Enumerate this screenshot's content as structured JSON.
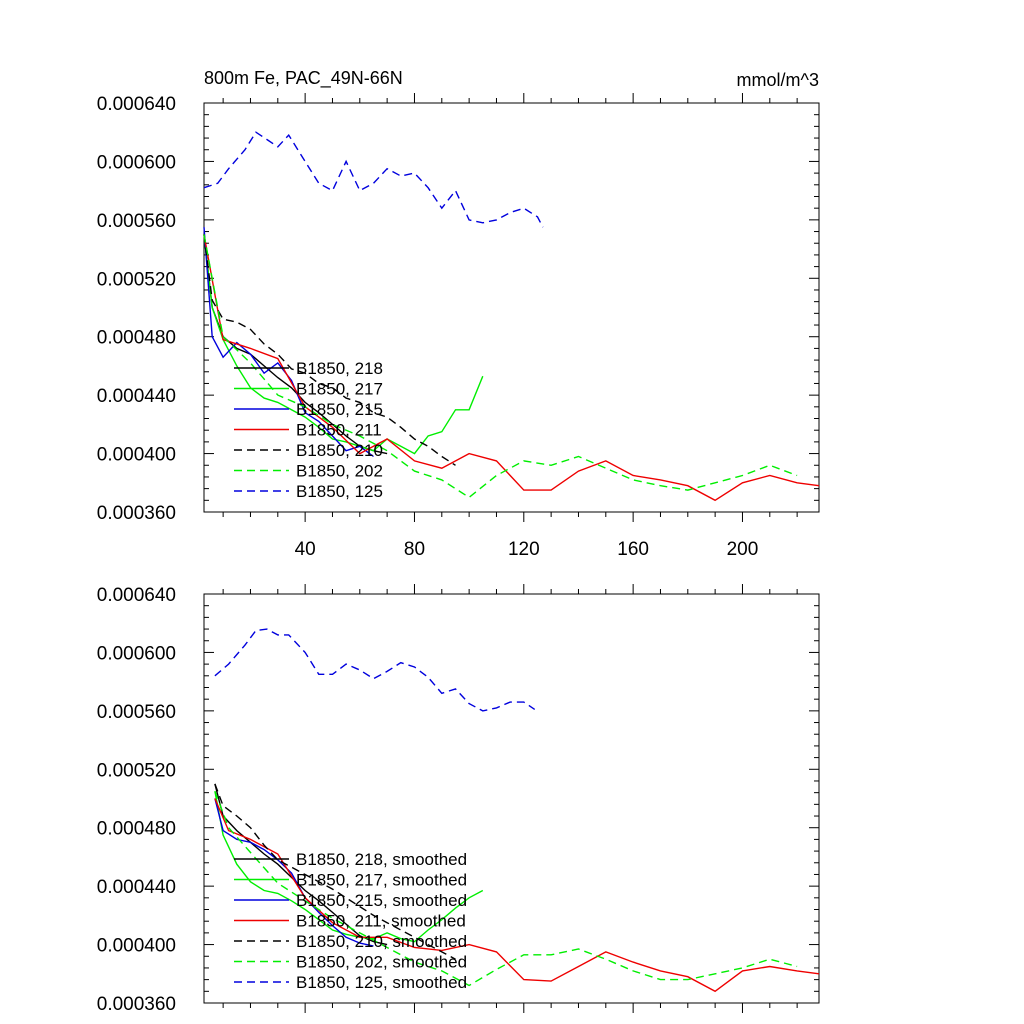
{
  "colors": {
    "black": "#000000",
    "green": "#00ee00",
    "blue": "#0000dd",
    "red": "#ee0000"
  },
  "chart_data": [
    {
      "type": "line",
      "title": "800m Fe, PAC_49N-66N",
      "units": "mmol/m^3",
      "xlim": [
        3,
        228
      ],
      "ylim": [
        0.00036,
        0.00064
      ],
      "xticks": [
        40,
        80,
        120,
        160,
        200
      ],
      "xtick_labels": [
        "40",
        "80",
        "120",
        "160",
        "200"
      ],
      "yticks": [
        0.00036,
        0.0004,
        0.00044,
        0.00048,
        0.00052,
        0.00056,
        0.0006,
        0.00064
      ],
      "ytick_labels": [
        "0.000360",
        "0.000400",
        "0.000440",
        "0.000480",
        "0.000520",
        "0.000560",
        "0.000600",
        "0.000640"
      ],
      "series": [
        {
          "name": "B1850, 218",
          "color": "#000000",
          "dash": "solid",
          "x": [
            3,
            6,
            10,
            15,
            20,
            25,
            30,
            35,
            40,
            45,
            50,
            55,
            60,
            65,
            70
          ],
          "y": [
            0.00055,
            0.0005,
            0.00048,
            0.000472,
            0.000468,
            0.00046,
            0.000452,
            0.000445,
            0.000435,
            0.000428,
            0.00042,
            0.000412,
            0.000405,
            0.000402,
            0.0004
          ]
        },
        {
          "name": "B1850, 217",
          "color": "#00ee00",
          "dash": "solid",
          "x": [
            3,
            6,
            10,
            15,
            20,
            25,
            30,
            35,
            40,
            45,
            50,
            55,
            60,
            65,
            70,
            75,
            80,
            85,
            90,
            95,
            100,
            105
          ],
          "y": [
            0.00055,
            0.0005,
            0.000478,
            0.00046,
            0.000445,
            0.000438,
            0.000435,
            0.00043,
            0.000425,
            0.000418,
            0.00041,
            0.000408,
            0.000405,
            0.000402,
            0.00041,
            0.000405,
            0.0004,
            0.000412,
            0.000415,
            0.00043,
            0.00043,
            0.000453
          ]
        },
        {
          "name": "B1850, 215",
          "color": "#0000dd",
          "dash": "solid",
          "x": [
            3,
            6,
            10,
            15,
            20,
            25,
            30,
            35,
            40,
            45,
            50,
            55,
            60,
            65
          ],
          "y": [
            0.000555,
            0.00048,
            0.000466,
            0.000476,
            0.000468,
            0.000455,
            0.000462,
            0.00045,
            0.000428,
            0.000422,
            0.000412,
            0.000402,
            0.000405,
            0.000398
          ]
        },
        {
          "name": "B1850, 211",
          "color": "#ee0000",
          "dash": "solid",
          "x": [
            3,
            10,
            20,
            30,
            40,
            50,
            60,
            70,
            80,
            90,
            100,
            110,
            120,
            130,
            140,
            150,
            160,
            170,
            180,
            190,
            200,
            210,
            220,
            228
          ],
          "y": [
            0.00055,
            0.000478,
            0.000472,
            0.000465,
            0.000432,
            0.000418,
            0.0004,
            0.00041,
            0.000395,
            0.00039,
            0.0004,
            0.000395,
            0.000375,
            0.000375,
            0.000388,
            0.000395,
            0.000385,
            0.000382,
            0.000378,
            0.000368,
            0.00038,
            0.000385,
            0.00038,
            0.000378
          ]
        },
        {
          "name": "B1850, 210",
          "color": "#000000",
          "dash": "dashed",
          "x": [
            3,
            6,
            10,
            15,
            20,
            25,
            30,
            35,
            40,
            45,
            50,
            55,
            60,
            65,
            70,
            75,
            80,
            85,
            90,
            95
          ],
          "y": [
            0.00055,
            0.000505,
            0.000492,
            0.00049,
            0.000485,
            0.000475,
            0.000468,
            0.000458,
            0.000455,
            0.000448,
            0.000445,
            0.000438,
            0.000435,
            0.000428,
            0.000425,
            0.000418,
            0.00041,
            0.000405,
            0.000398,
            0.000392
          ]
        },
        {
          "name": "B1850, 202",
          "color": "#00ee00",
          "dash": "dashed",
          "x": [
            3,
            10,
            20,
            30,
            40,
            50,
            60,
            70,
            80,
            90,
            100,
            110,
            120,
            130,
            140,
            150,
            160,
            170,
            180,
            190,
            200,
            210,
            220
          ],
          "y": [
            0.00055,
            0.00048,
            0.000462,
            0.00044,
            0.000432,
            0.00042,
            0.000412,
            0.000402,
            0.000388,
            0.000382,
            0.00037,
            0.000385,
            0.000395,
            0.000392,
            0.000398,
            0.00039,
            0.000382,
            0.000378,
            0.000375,
            0.00038,
            0.000385,
            0.000392,
            0.000385
          ]
        },
        {
          "name": "B1850, 125",
          "color": "#0000dd",
          "dash": "dashed",
          "x": [
            3,
            8,
            12,
            18,
            22,
            26,
            30,
            34,
            40,
            45,
            50,
            55,
            60,
            65,
            70,
            75,
            80,
            85,
            90,
            95,
            100,
            105,
            110,
            115,
            120,
            125,
            127
          ],
          "y": [
            0.000582,
            0.000585,
            0.000595,
            0.000608,
            0.00062,
            0.000615,
            0.00061,
            0.000618,
            0.0006,
            0.000585,
            0.00058,
            0.0006,
            0.00058,
            0.000585,
            0.000595,
            0.00059,
            0.000592,
            0.000582,
            0.000568,
            0.00058,
            0.00056,
            0.000558,
            0.00056,
            0.000565,
            0.000568,
            0.000562,
            0.000555
          ]
        }
      ]
    },
    {
      "type": "line",
      "xlim": [
        3,
        228
      ],
      "ylim": [
        0.00036,
        0.00064
      ],
      "xticks": [
        40,
        80,
        120,
        160,
        200
      ],
      "yticks": [
        0.00036,
        0.0004,
        0.00044,
        0.00048,
        0.00052,
        0.00056,
        0.0006,
        0.00064
      ],
      "ytick_labels": [
        "0.000360",
        "0.000400",
        "0.000440",
        "0.000480",
        "0.000520",
        "0.000560",
        "0.000600",
        "0.000640"
      ],
      "series": [
        {
          "name": "B1850, 218, smoothed",
          "color": "#000000",
          "dash": "solid",
          "x": [
            7,
            10,
            15,
            20,
            25,
            30,
            35,
            40,
            45,
            50,
            55,
            60,
            65,
            70
          ],
          "y": [
            0.00051,
            0.000488,
            0.000478,
            0.00047,
            0.000462,
            0.000455,
            0.000446,
            0.000437,
            0.00043,
            0.000422,
            0.000414,
            0.000406,
            0.000402,
            0.0004
          ]
        },
        {
          "name": "B1850, 217, smoothed",
          "color": "#00ee00",
          "dash": "solid",
          "x": [
            7,
            10,
            15,
            20,
            25,
            30,
            35,
            40,
            45,
            50,
            55,
            60,
            65,
            70,
            75,
            80,
            85,
            90,
            95,
            100,
            105
          ],
          "y": [
            0.000505,
            0.000475,
            0.000455,
            0.000443,
            0.000437,
            0.000435,
            0.00043,
            0.000424,
            0.000417,
            0.00041,
            0.000407,
            0.000405,
            0.000404,
            0.000408,
            0.000404,
            0.000402,
            0.00041,
            0.000417,
            0.000425,
            0.000432,
            0.000437
          ]
        },
        {
          "name": "B1850, 215, smoothed",
          "color": "#0000dd",
          "dash": "solid",
          "x": [
            7,
            10,
            15,
            20,
            25,
            30,
            35,
            40,
            45,
            50,
            55,
            60,
            65
          ],
          "y": [
            0.0005,
            0.000478,
            0.000472,
            0.00047,
            0.000465,
            0.000458,
            0.000449,
            0.000432,
            0.000422,
            0.000413,
            0.000405,
            0.000401,
            0.000399
          ]
        },
        {
          "name": "B1850, 211, smoothed",
          "color": "#ee0000",
          "dash": "solid",
          "x": [
            7,
            12,
            20,
            30,
            40,
            50,
            60,
            70,
            80,
            90,
            100,
            110,
            120,
            130,
            140,
            150,
            160,
            170,
            180,
            190,
            200,
            210,
            220,
            228
          ],
          "y": [
            0.0005,
            0.000478,
            0.000472,
            0.000462,
            0.000432,
            0.000415,
            0.000405,
            0.000405,
            0.000398,
            0.000396,
            0.0004,
            0.000395,
            0.000376,
            0.000375,
            0.000385,
            0.000395,
            0.000388,
            0.000382,
            0.000378,
            0.000368,
            0.000382,
            0.000385,
            0.000382,
            0.00038
          ]
        },
        {
          "name": "B1850, 210, smoothed",
          "color": "#000000",
          "dash": "dashed",
          "x": [
            7,
            10,
            15,
            20,
            25,
            30,
            35,
            40,
            45,
            50,
            55,
            60,
            65,
            70,
            75,
            80,
            85,
            90,
            95
          ],
          "y": [
            0.00051,
            0.000495,
            0.000488,
            0.00048,
            0.000468,
            0.000458,
            0.000453,
            0.000448,
            0.000443,
            0.000438,
            0.000432,
            0.000426,
            0.00042,
            0.000415,
            0.00041,
            0.000405,
            0.0004,
            0.000395,
            0.00039
          ]
        },
        {
          "name": "B1850, 202, smoothed",
          "color": "#00ee00",
          "dash": "dashed",
          "x": [
            7,
            12,
            20,
            30,
            40,
            50,
            60,
            70,
            80,
            90,
            100,
            110,
            120,
            130,
            140,
            150,
            160,
            170,
            180,
            190,
            200,
            210,
            220
          ],
          "y": [
            0.000505,
            0.00048,
            0.000463,
            0.000442,
            0.00043,
            0.000418,
            0.000408,
            0.000398,
            0.000388,
            0.000382,
            0.000372,
            0.000383,
            0.000393,
            0.000393,
            0.000397,
            0.00039,
            0.000382,
            0.000376,
            0.000376,
            0.00038,
            0.000384,
            0.00039,
            0.000385
          ]
        },
        {
          "name": "B1850, 125, smoothed",
          "color": "#0000dd",
          "dash": "dashed",
          "x": [
            7,
            12,
            18,
            22,
            26,
            30,
            34,
            40,
            45,
            50,
            55,
            60,
            65,
            70,
            75,
            80,
            85,
            90,
            95,
            100,
            105,
            110,
            115,
            120,
            124
          ],
          "y": [
            0.000584,
            0.000592,
            0.000605,
            0.000615,
            0.000616,
            0.000612,
            0.000612,
            0.0006,
            0.000585,
            0.000585,
            0.000592,
            0.000588,
            0.000582,
            0.000587,
            0.000593,
            0.00059,
            0.000583,
            0.000572,
            0.000575,
            0.000565,
            0.00056,
            0.000562,
            0.000566,
            0.000566,
            0.000561
          ]
        }
      ]
    }
  ]
}
